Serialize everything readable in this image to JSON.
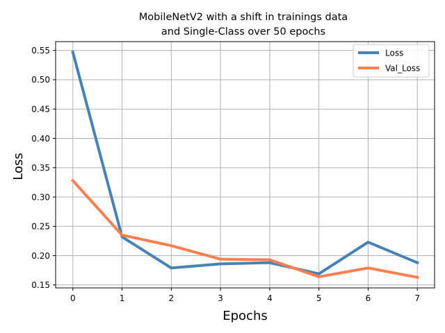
{
  "chart_data": {
    "type": "line",
    "title_line1": "MobileNetV2 with a shift in trainings data",
    "title_line2": "and Single-Class over 50 epochs",
    "xlabel": "Epochs",
    "ylabel": "Loss",
    "x": [
      0,
      1,
      2,
      3,
      4,
      5,
      6,
      7
    ],
    "xlim": [
      -0.35,
      7.35
    ],
    "ylim": [
      0.145,
      0.565
    ],
    "xticks": [
      0,
      1,
      2,
      3,
      4,
      5,
      6,
      7
    ],
    "yticks": [
      0.15,
      0.2,
      0.25,
      0.3,
      0.35,
      0.4,
      0.45,
      0.5,
      0.55
    ],
    "ytick_labels": [
      "0.15",
      "0.20",
      "0.25",
      "0.30",
      "0.35",
      "0.40",
      "0.45",
      "0.50",
      "0.55"
    ],
    "grid": true,
    "legend_position": "top-right",
    "series": [
      {
        "name": "Loss",
        "color": "#4682b4",
        "values": [
          0.547,
          0.232,
          0.179,
          0.186,
          0.188,
          0.169,
          0.223,
          0.188
        ]
      },
      {
        "name": "Val_Loss",
        "color": "#ff7f50",
        "values": [
          0.328,
          0.235,
          0.217,
          0.194,
          0.193,
          0.164,
          0.179,
          0.163
        ]
      }
    ]
  }
}
